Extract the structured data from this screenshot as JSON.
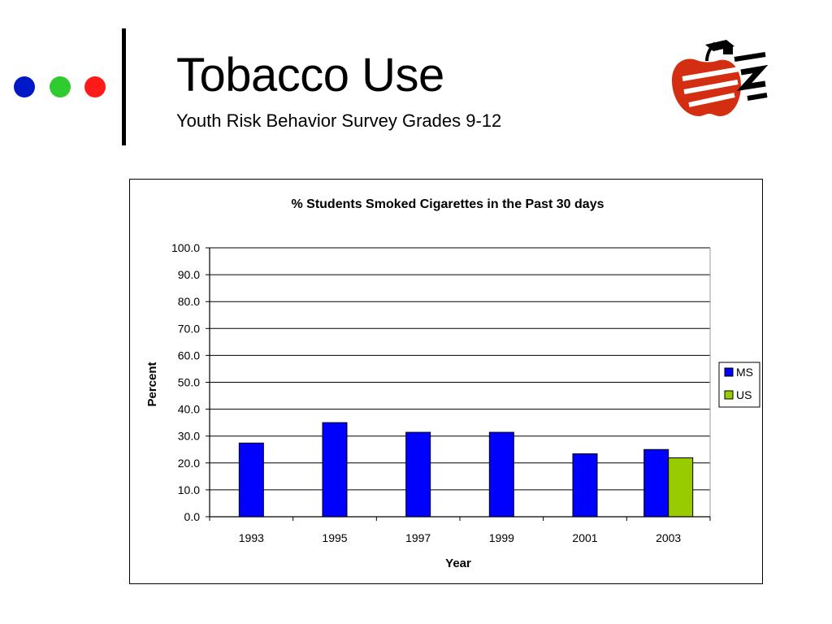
{
  "slide": {
    "title": "Tobacco Use",
    "subtitle": "Youth Risk Behavior Survey Grades 9-12",
    "bullet_colors": [
      "#0018c8",
      "#2ecc2e",
      "#ff1a1a"
    ],
    "logo_icon": "apple-graduation-cap-icon"
  },
  "chart_data": {
    "type": "bar",
    "title": "% Students Smoked Cigarettes in the Past 30 days",
    "xlabel": "Year",
    "ylabel": "Percent",
    "ylim": [
      0,
      100
    ],
    "yticks": [
      "0.0",
      "10.0",
      "20.0",
      "30.0",
      "40.0",
      "50.0",
      "60.0",
      "70.0",
      "80.0",
      "90.0",
      "100.0"
    ],
    "categories": [
      "1993",
      "1995",
      "1997",
      "1999",
      "2001",
      "2003"
    ],
    "series": [
      {
        "name": "MS",
        "color": "#0000ff",
        "values": [
          27.4,
          35.0,
          31.4,
          31.4,
          23.4,
          25.0
        ]
      },
      {
        "name": "US",
        "color": "#99cc00",
        "values": [
          null,
          null,
          null,
          null,
          null,
          21.9
        ]
      }
    ],
    "grid": true,
    "legend": "right"
  }
}
